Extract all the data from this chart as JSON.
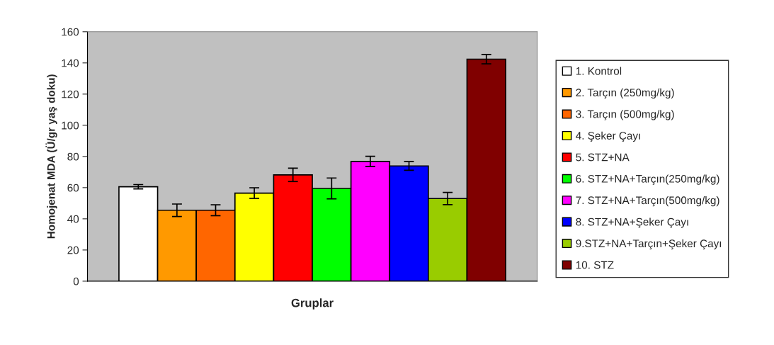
{
  "chart_data": {
    "type": "bar",
    "xlabel": "Gruplar",
    "ylabel": "Homojenat MDA (Ü/gr yaş doku)",
    "categories": [
      null
    ],
    "ylim": [
      0,
      160
    ],
    "yticks": [
      0,
      20,
      40,
      60,
      80,
      100,
      120,
      140,
      160
    ],
    "grid": false,
    "legend": "right",
    "series": [
      {
        "name": "1. Kontrol",
        "color": "#ffffff",
        "values": [
          60.6
        ],
        "errors": [
          1.4
        ]
      },
      {
        "name": "2. Tarçın (250mg/kg)",
        "color": "#ff9900",
        "values": [
          45.5
        ],
        "errors": [
          4
        ]
      },
      {
        "name": "3. Tarçın (500mg/kg)",
        "color": "#ff6600",
        "values": [
          45.5
        ],
        "errors": [
          3.5
        ]
      },
      {
        "name": "4. Şeker Çayı",
        "color": "#ffff00",
        "values": [
          56.5
        ],
        "errors": [
          3.4
        ]
      },
      {
        "name": "5. STZ+NA",
        "color": "#ff0000",
        "values": [
          68.2
        ],
        "errors": [
          4.3
        ]
      },
      {
        "name": "6. STZ+NA+Tarçın(250mg/kg)",
        "color": "#00ff00",
        "values": [
          59.5
        ],
        "errors": [
          6.7
        ]
      },
      {
        "name": "7. STZ+NA+Tarçın(500mg/kg)",
        "color": "#ff00ff",
        "values": [
          76.8
        ],
        "errors": [
          3.3
        ]
      },
      {
        "name": "8. STZ+NA+Şeker Çayı",
        "color": "#0000ff",
        "values": [
          73.9
        ],
        "errors": [
          2.8
        ]
      },
      {
        "name": "9.STZ+NA+Tarçın+Şeker Çayı",
        "color": "#99cc00",
        "values": [
          53
        ],
        "errors": [
          3.9
        ]
      },
      {
        "name": "10. STZ",
        "color": "#800000",
        "values": [
          142.4
        ],
        "errors": [
          3
        ]
      }
    ]
  }
}
